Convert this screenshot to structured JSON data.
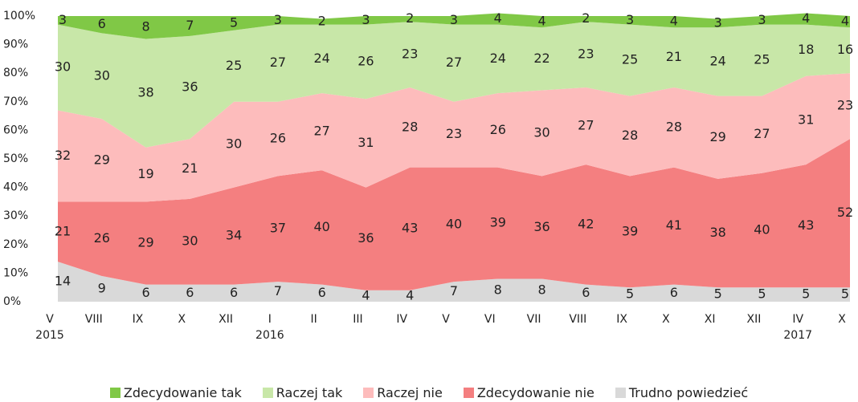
{
  "chart_data": {
    "type": "stacked_area",
    "categories": [
      "V\n2015",
      "VIII",
      "IX",
      "X",
      "XII",
      "I\n2016",
      "II",
      "III",
      "IV",
      "V",
      "VI",
      "VII",
      "VIII",
      "IX",
      "X",
      "XI",
      "XII",
      "IV\n2017",
      "X"
    ],
    "series": [
      {
        "name": "Zdecydowanie tak",
        "color": "#80c846",
        "values": [
          3,
          6,
          8,
          7,
          5,
          3,
          2,
          3,
          2,
          3,
          4,
          4,
          2,
          3,
          4,
          3,
          3,
          4,
          4
        ]
      },
      {
        "name": "Raczej tak",
        "color": "#c8e7a8",
        "values": [
          30,
          30,
          38,
          36,
          25,
          27,
          24,
          26,
          23,
          27,
          24,
          22,
          23,
          25,
          21,
          24,
          25,
          18,
          16
        ]
      },
      {
        "name": "Raczej nie",
        "color": "#fdbcbc",
        "values": [
          32,
          29,
          19,
          21,
          30,
          26,
          27,
          31,
          28,
          23,
          26,
          30,
          27,
          28,
          28,
          29,
          27,
          31,
          23
        ]
      },
      {
        "name": "Zdecydowanie nie",
        "color": "#f47f80",
        "values": [
          21,
          26,
          29,
          30,
          34,
          37,
          40,
          36,
          43,
          40,
          39,
          36,
          42,
          39,
          41,
          38,
          40,
          43,
          52
        ]
      },
      {
        "name": "Trudno powiedzieć",
        "color": "#d9d9d9",
        "values": [
          14,
          9,
          6,
          6,
          6,
          7,
          6,
          4,
          4,
          7,
          8,
          8,
          6,
          5,
          6,
          5,
          5,
          5,
          5
        ]
      }
    ],
    "ylim": [
      0,
      100
    ],
    "yticks": [
      {
        "value": 0,
        "label": "0%"
      },
      {
        "value": 10,
        "label": "10%"
      },
      {
        "value": 20,
        "label": "20%"
      },
      {
        "value": 30,
        "label": "30%"
      },
      {
        "value": 40,
        "label": "40%"
      },
      {
        "value": 50,
        "label": "50%"
      },
      {
        "value": 60,
        "label": "60%"
      },
      {
        "value": 70,
        "label": "70%"
      },
      {
        "value": 80,
        "label": "80%"
      },
      {
        "value": 90,
        "label": "90%"
      },
      {
        "value": 100,
        "label": "100%"
      }
    ],
    "grid": false,
    "legend": "bottom"
  }
}
